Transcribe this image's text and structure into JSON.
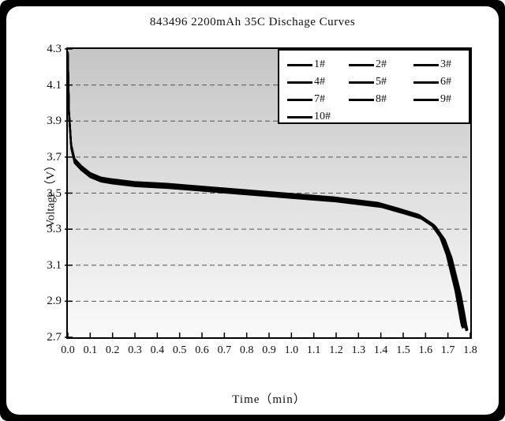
{
  "colors": {
    "frame": "#000000",
    "card_bg": "#ffffff",
    "plot_gradient_top": "#c5c5c5",
    "plot_gradient_bottom": "#fafafa",
    "line": "#000000",
    "grid": "#555555",
    "axis": "#000000"
  },
  "chart_data": {
    "type": "line",
    "title": "843496  2200mAh 35C Dischage Curves",
    "xlabel": "Time（min）",
    "ylabel": "Voltage（V）",
    "xlim": [
      0,
      1.8
    ],
    "ylim": [
      2.7,
      4.3
    ],
    "grid": "dashed horizontal",
    "gridline_y_values": [
      4.1,
      3.9,
      3.7,
      3.5,
      3.3,
      3.1,
      2.9
    ],
    "x_ticks": [
      "0.0",
      "0.1",
      "0.2",
      "0.3",
      "0.4",
      "0.5",
      "0.6",
      "0.7",
      "0.8",
      "0.9",
      "1.0",
      "1.1",
      "1.2",
      "1.3",
      "1.4",
      "1.5",
      "1.6",
      "1.7",
      "1.8"
    ],
    "y_ticks": [
      "4.3",
      "4.1",
      "3.9",
      "3.7",
      "3.5",
      "3.3",
      "3.1",
      "2.9",
      "2.7"
    ],
    "legend": {
      "position": "top-right",
      "rows": 4,
      "columns": 3
    },
    "x": [
      0,
      0.005,
      0.015,
      0.03,
      0.06,
      0.1,
      0.15,
      0.2,
      0.3,
      0.45,
      0.6,
      0.75,
      0.9,
      1.05,
      1.2,
      1.3,
      1.4,
      1.5,
      1.58,
      1.64,
      1.68,
      1.71,
      1.73,
      1.75,
      1.765,
      1.775,
      1.78
    ],
    "base_values": [
      4.27,
      3.95,
      3.76,
      3.68,
      3.64,
      3.6,
      3.575,
      3.565,
      3.55,
      3.54,
      3.525,
      3.51,
      3.495,
      3.48,
      3.465,
      3.45,
      3.435,
      3.4,
      3.37,
      3.32,
      3.25,
      3.15,
      3.05,
      2.95,
      2.85,
      2.78,
      2.75
    ],
    "series": [
      {
        "name": "1#",
        "voltage_offset": 0.0,
        "time_scale": 1.0
      },
      {
        "name": "2#",
        "voltage_offset": 0.005,
        "time_scale": 0.997
      },
      {
        "name": "3#",
        "voltage_offset": -0.005,
        "time_scale": 1.002
      },
      {
        "name": "4#",
        "voltage_offset": 0.009,
        "time_scale": 0.994
      },
      {
        "name": "5#",
        "voltage_offset": -0.009,
        "time_scale": 1.004
      },
      {
        "name": "6#",
        "voltage_offset": 0.012,
        "time_scale": 0.99
      },
      {
        "name": "7#",
        "voltage_offset": -0.012,
        "time_scale": 1.001
      },
      {
        "name": "8#",
        "voltage_offset": 0.007,
        "time_scale": 0.996
      },
      {
        "name": "9#",
        "voltage_offset": -0.007,
        "time_scale": 1.003
      },
      {
        "name": "10#",
        "voltage_offset": 0.003,
        "time_scale": 0.992
      }
    ]
  }
}
